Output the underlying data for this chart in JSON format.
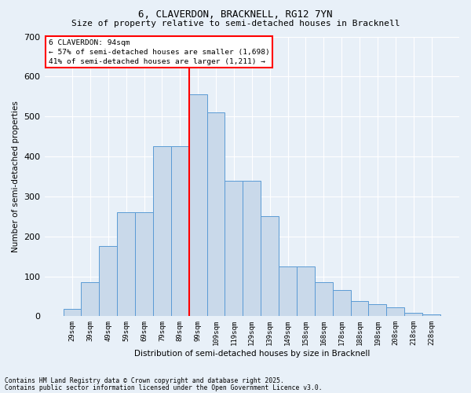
{
  "title": "6, CLAVERDON, BRACKNELL, RG12 7YN",
  "subtitle": "Size of property relative to semi-detached houses in Bracknell",
  "xlabel": "Distribution of semi-detached houses by size in Bracknell",
  "ylabel": "Number of semi-detached properties",
  "footnote1": "Contains HM Land Registry data © Crown copyright and database right 2025.",
  "footnote2": "Contains public sector information licensed under the Open Government Licence v3.0.",
  "annotation_title": "6 CLAVERDON: 94sqm",
  "annotation_line1": "← 57% of semi-detached houses are smaller (1,698)",
  "annotation_line2": "41% of semi-detached houses are larger (1,211) →",
  "bin_labels": [
    "29sqm",
    "39sqm",
    "49sqm",
    "59sqm",
    "69sqm",
    "79sqm",
    "89sqm",
    "99sqm",
    "109sqm",
    "119sqm",
    "129sqm",
    "139sqm",
    "149sqm",
    "158sqm",
    "168sqm",
    "178sqm",
    "188sqm",
    "198sqm",
    "208sqm",
    "218sqm",
    "228sqm"
  ],
  "bar_heights": [
    18,
    85,
    175,
    260,
    260,
    425,
    425,
    555,
    510,
    340,
    340,
    250,
    125,
    125,
    85,
    65,
    38,
    30,
    22,
    8,
    5
  ],
  "bar_color": "#c9d9ea",
  "bar_edge_color": "#5b9bd5",
  "vline_color": "red",
  "background_color": "#e8f0f8",
  "ylim": [
    0,
    700
  ],
  "yticks": [
    0,
    100,
    200,
    300,
    400,
    500,
    600,
    700
  ],
  "title_fontsize": 9,
  "subtitle_fontsize": 8
}
